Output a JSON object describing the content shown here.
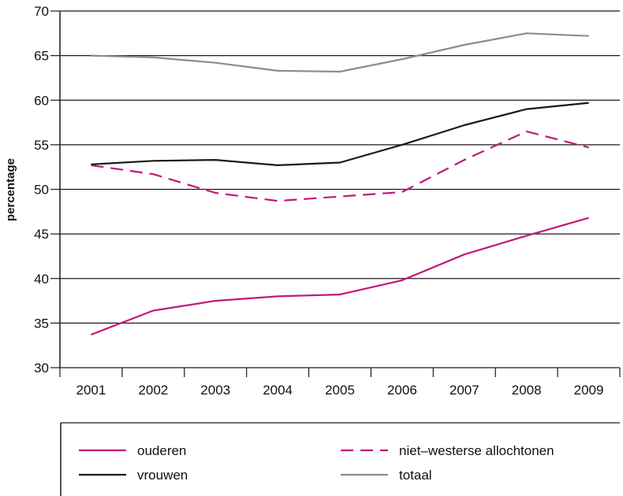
{
  "chart_data": {
    "type": "line",
    "title": "",
    "xlabel": "",
    "ylabel": "percentage",
    "categories": [
      "2001",
      "2002",
      "2003",
      "2004",
      "2005",
      "2006",
      "2007",
      "2008",
      "2009"
    ],
    "ylim": [
      30,
      70
    ],
    "yticks": [
      30,
      35,
      40,
      45,
      50,
      55,
      60,
      65,
      70
    ],
    "grid": true,
    "legend": "bottom",
    "series": [
      {
        "name": "ouderen",
        "color": "#c2177a",
        "dash": "solid",
        "values": [
          33.7,
          36.4,
          37.5,
          38.0,
          38.2,
          39.8,
          42.7,
          44.8,
          46.8
        ]
      },
      {
        "name": "niet–westerse allochtonen",
        "color": "#c2177a",
        "dash": "dashed",
        "values": [
          52.7,
          51.7,
          49.6,
          48.7,
          49.2,
          49.7,
          53.3,
          56.5,
          54.7
        ]
      },
      {
        "name": "vrouwen",
        "color": "#1a1a1a",
        "dash": "solid",
        "values": [
          52.8,
          53.2,
          53.3,
          52.7,
          53.0,
          55.0,
          57.2,
          59.0,
          59.7
        ]
      },
      {
        "name": "totaal",
        "color": "#8c8c8c",
        "dash": "solid",
        "values": [
          65.0,
          64.8,
          64.2,
          63.3,
          63.2,
          64.6,
          66.2,
          67.5,
          67.2
        ]
      }
    ]
  }
}
